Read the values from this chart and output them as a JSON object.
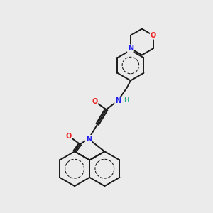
{
  "bg_color": "#ebebeb",
  "bond_color": "#1a1a1a",
  "N_color": "#2020ee",
  "O_color": "#ee2020",
  "H_color": "#2aaa8a",
  "bond_width": 1.4,
  "figsize": [
    3.0,
    3.0
  ],
  "dpi": 100,
  "xlim": [
    0,
    10
  ],
  "ylim": [
    0,
    10
  ]
}
